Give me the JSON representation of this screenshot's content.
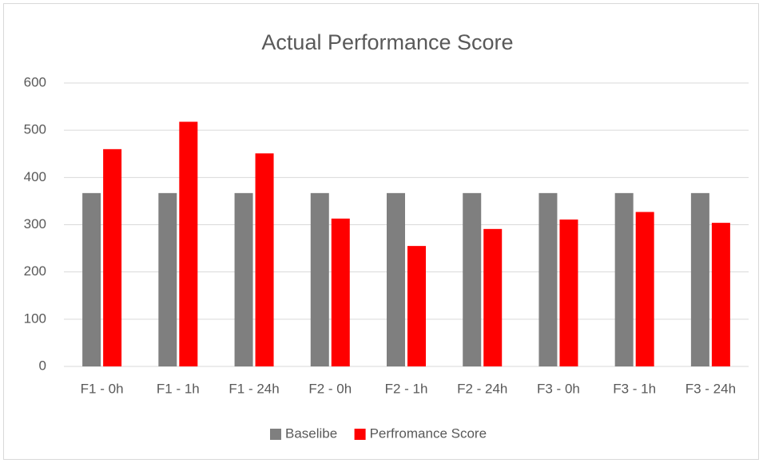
{
  "chart_data": {
    "type": "bar",
    "title": "Actual Performance Score",
    "categories": [
      "F1 - 0h",
      "F1 - 1h",
      "F1 - 24h",
      "F2 - 0h",
      "F2 - 1h",
      "F2 - 24h",
      "F3 - 0h",
      "F3 - 1h",
      "F3 - 24h"
    ],
    "series": [
      {
        "name": "Baselibe",
        "color": "#7f7f7f",
        "values": [
          367,
          367,
          367,
          367,
          367,
          367,
          367,
          367,
          367
        ]
      },
      {
        "name": "Perfromance Score",
        "color": "#ff0000",
        "values": [
          460,
          518,
          451,
          313,
          255,
          291,
          311,
          327,
          304
        ]
      }
    ],
    "ylim": [
      0,
      600
    ],
    "yticks": [
      0,
      100,
      200,
      300,
      400,
      500,
      600
    ],
    "grid": true,
    "legend": "bottom"
  }
}
